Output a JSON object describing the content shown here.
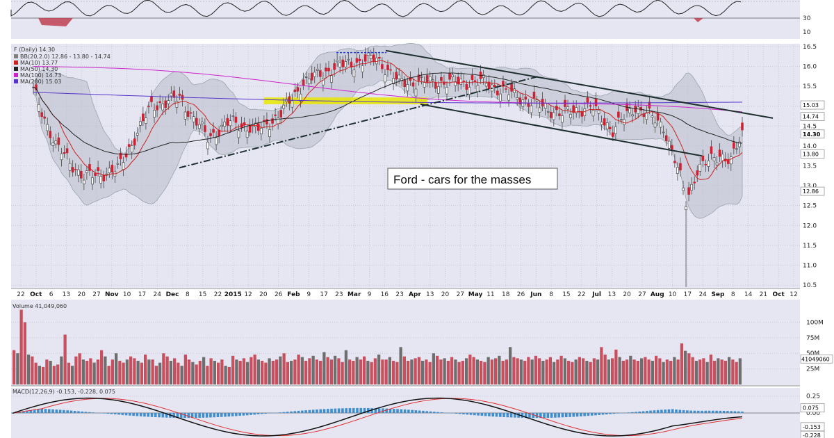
{
  "chart_data": {
    "type": "candlestick",
    "symbol": "F (Daily)",
    "last_price": "14.30",
    "annotation": "Ford - cars for the masses",
    "legend": [
      {
        "label": "BB(20,2.0)",
        "values": "12.86 - 13.80 - 14.74",
        "color": "#7f7f7f"
      },
      {
        "label": "MA(10)",
        "values": "13.77",
        "color": "#cc2222"
      },
      {
        "label": "MA(50)",
        "values": "14.30",
        "color": "#222222"
      },
      {
        "label": "MA(100)",
        "values": "14.73",
        "color": "#cc22cc"
      },
      {
        "label": "MA(200)",
        "values": "15.03",
        "color": "#5533cc"
      }
    ],
    "price_axis": {
      "min": 10.5,
      "max": 16.5,
      "ticks": [
        "16.5",
        "16.0",
        "15.5",
        "15.0",
        "14.5",
        "14.0",
        "13.5",
        "13.0",
        "12.5",
        "12.0",
        "11.5",
        "11.0",
        "10.5"
      ],
      "tags": [
        {
          "label": "15.03",
          "value": 15.03
        },
        {
          "label": "14.74",
          "value": 14.74
        },
        {
          "label": "14.30",
          "value": 14.3
        },
        {
          "label": "13.80",
          "value": 13.8
        },
        {
          "label": "12.86",
          "value": 12.86
        }
      ]
    },
    "x_axis": {
      "labels": [
        {
          "t": "22",
          "bold": false
        },
        {
          "t": "Oct",
          "bold": true
        },
        {
          "t": "6",
          "bold": false
        },
        {
          "t": "13",
          "bold": false
        },
        {
          "t": "20",
          "bold": false
        },
        {
          "t": "27",
          "bold": false
        },
        {
          "t": "Nov",
          "bold": true
        },
        {
          "t": "10",
          "bold": false
        },
        {
          "t": "17",
          "bold": false
        },
        {
          "t": "24",
          "bold": false
        },
        {
          "t": "Dec",
          "bold": true
        },
        {
          "t": "8",
          "bold": false
        },
        {
          "t": "15",
          "bold": false
        },
        {
          "t": "22",
          "bold": false
        },
        {
          "t": "2015",
          "bold": true
        },
        {
          "t": "12",
          "bold": false
        },
        {
          "t": "20",
          "bold": false
        },
        {
          "t": "26",
          "bold": false
        },
        {
          "t": "Feb",
          "bold": true
        },
        {
          "t": "9",
          "bold": false
        },
        {
          "t": "17",
          "bold": false
        },
        {
          "t": "23",
          "bold": false
        },
        {
          "t": "Mar",
          "bold": true
        },
        {
          "t": "9",
          "bold": false
        },
        {
          "t": "16",
          "bold": false
        },
        {
          "t": "23",
          "bold": false
        },
        {
          "t": "Apr",
          "bold": true
        },
        {
          "t": "13",
          "bold": false
        },
        {
          "t": "20",
          "bold": false
        },
        {
          "t": "27",
          "bold": false
        },
        {
          "t": "May",
          "bold": true
        },
        {
          "t": "11",
          "bold": false
        },
        {
          "t": "18",
          "bold": false
        },
        {
          "t": "26",
          "bold": false
        },
        {
          "t": "Jun",
          "bold": true
        },
        {
          "t": "8",
          "bold": false
        },
        {
          "t": "15",
          "bold": false
        },
        {
          "t": "22",
          "bold": false
        },
        {
          "t": "Jul",
          "bold": true
        },
        {
          "t": "13",
          "bold": false
        },
        {
          "t": "20",
          "bold": false
        },
        {
          "t": "27",
          "bold": false
        },
        {
          "t": "Aug",
          "bold": true
        },
        {
          "t": "10",
          "bold": false
        },
        {
          "t": "17",
          "bold": false
        },
        {
          "t": "24",
          "bold": false
        },
        {
          "t": "Sep",
          "bold": true
        },
        {
          "t": "8",
          "bold": false
        },
        {
          "t": "14",
          "bold": false
        },
        {
          "t": "21",
          "bold": false
        },
        {
          "t": "Oct",
          "bold": true
        },
        {
          "t": "12",
          "bold": false
        }
      ]
    },
    "rsi_panel": {
      "ticks": [
        "30",
        "10"
      ]
    },
    "volume_panel": {
      "title": "Volume 41,049,060",
      "ticks": [
        "100M",
        "75M",
        "50M",
        "25M"
      ],
      "last_tag": "41049060",
      "ymax_m": 125,
      "values_m": [
        55,
        50,
        120,
        100,
        48,
        45,
        35,
        30,
        28,
        40,
        38,
        30,
        32,
        45,
        80,
        35,
        30,
        45,
        50,
        40,
        38,
        42,
        35,
        40,
        55,
        45,
        30,
        40,
        50,
        38,
        35,
        40,
        45,
        42,
        38,
        35,
        48,
        40,
        40,
        30,
        35,
        50,
        45,
        38,
        42,
        35,
        30,
        48,
        40,
        36,
        32,
        38,
        44,
        30,
        42,
        38,
        35,
        40,
        30,
        28,
        46,
        40,
        38,
        42,
        36,
        44,
        48,
        40,
        38,
        35,
        42,
        38,
        40,
        45,
        50,
        36,
        38,
        40,
        48,
        44,
        38,
        42,
        46,
        40,
        38,
        52,
        44,
        40,
        46,
        42,
        36,
        55,
        40,
        38,
        44,
        40,
        45,
        38,
        36,
        42,
        48,
        40,
        40,
        44,
        38,
        36,
        60,
        45,
        38,
        40,
        42,
        44,
        38,
        40,
        36,
        50,
        46,
        40,
        42,
        38,
        44,
        40,
        36,
        38,
        42,
        48,
        44,
        40,
        38,
        36,
        44,
        40,
        42,
        46,
        38,
        40,
        60,
        44,
        42,
        40,
        38,
        44,
        40,
        46,
        42,
        38,
        40,
        44,
        36,
        40,
        46,
        42,
        38,
        36,
        40,
        44,
        42,
        38,
        36,
        42,
        40,
        60,
        48,
        40,
        42,
        56,
        44,
        38,
        40,
        46,
        40,
        38,
        42,
        44,
        40,
        38,
        46,
        42,
        36,
        40,
        38,
        44,
        40,
        66,
        54,
        50,
        44,
        38,
        40,
        42,
        36,
        48,
        38,
        42,
        40,
        38,
        44,
        40,
        36,
        42
      ],
      "colors": "alternating_red_gray"
    },
    "macd_panel": {
      "title": "MACD(12,26,9)",
      "macd": "-0.153",
      "signal": "-0.228",
      "hist": "0.075",
      "ticks": [
        "0.25",
        "0.00"
      ],
      "tags": [
        "0.075",
        "-0.153",
        "-0.228"
      ],
      "ylim": [
        -0.35,
        0.35
      ]
    },
    "trend_notes": "Descending channel from Mar to Sep; ascending trend line from Dec to Apr; yellow zone near 15.1 Feb-May",
    "colors": {
      "up": "#ffffff",
      "down": "#cc2233",
      "ma10": "#cc2222",
      "ma50": "#222222",
      "ma100": "#cc22cc",
      "ma200": "#5533cc",
      "bb": "#9aa3ad",
      "macd": "#111111",
      "signal": "#e03030",
      "hist": "#3f8fd0"
    }
  }
}
